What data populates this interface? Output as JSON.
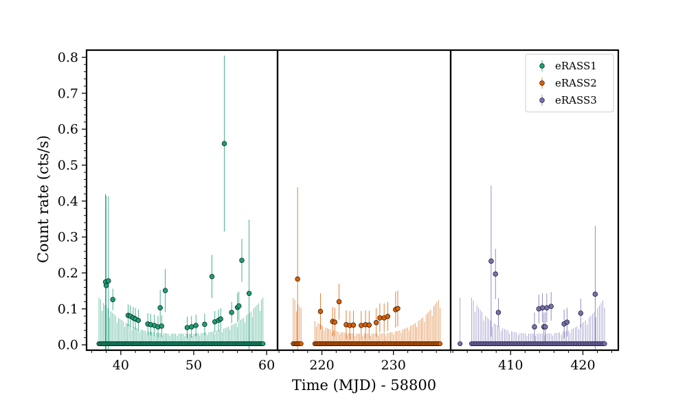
{
  "chart_data": {
    "type": "scatter",
    "xlabel": "Time (MJD) - 58800",
    "ylabel": "Count rate (cts/s)",
    "ylim": [
      -0.015,
      0.82
    ],
    "y_ticks": [
      0.0,
      0.1,
      0.2,
      0.3,
      0.4,
      0.5,
      0.6,
      0.7,
      0.8
    ],
    "y_tick_labels": [
      "0.0",
      "0.1",
      "0.2",
      "0.3",
      "0.4",
      "0.5",
      "0.6",
      "0.7",
      "0.8"
    ],
    "legend_position": "top-right",
    "panels": [
      {
        "xlim": [
          35.3,
          61.5
        ],
        "x_ticks": [
          40,
          50,
          60
        ],
        "x_tick_labels": [
          "40",
          "50",
          "60"
        ]
      },
      {
        "xlim": [
          213.8,
          238.0
        ],
        "x_ticks": [
          220,
          230
        ],
        "x_tick_labels": [
          "220",
          "230"
        ]
      },
      {
        "xlim": [
          401.7,
          424.9
        ],
        "x_ticks": [
          410,
          420
        ],
        "x_tick_labels": [
          "410",
          "420"
        ]
      }
    ],
    "series": [
      {
        "name": "eRASS1",
        "color": "#1b9e77",
        "panel": 0,
        "t_range": [
          37.0,
          59.5
        ],
        "n_base": 110,
        "points": [
          {
            "x": 37.9,
            "y": 0.175,
            "err": 0.245
          },
          {
            "x": 38.0,
            "y": 0.165,
            "err": 0.25
          },
          {
            "x": 38.3,
            "y": 0.178,
            "err": 0.235
          },
          {
            "x": 38.9,
            "y": 0.126,
            "err": 0.03
          },
          {
            "x": 41.0,
            "y": 0.082,
            "err": 0.03
          },
          {
            "x": 41.3,
            "y": 0.08,
            "err": 0.03
          },
          {
            "x": 41.7,
            "y": 0.075,
            "err": 0.03
          },
          {
            "x": 42.0,
            "y": 0.072,
            "err": 0.03
          },
          {
            "x": 42.4,
            "y": 0.068,
            "err": 0.03
          },
          {
            "x": 43.7,
            "y": 0.058,
            "err": 0.03
          },
          {
            "x": 44.1,
            "y": 0.056,
            "err": 0.03
          },
          {
            "x": 44.6,
            "y": 0.054,
            "err": 0.03
          },
          {
            "x": 45.1,
            "y": 0.05,
            "err": 0.03
          },
          {
            "x": 45.4,
            "y": 0.103,
            "err": 0.05
          },
          {
            "x": 45.6,
            "y": 0.052,
            "err": 0.03
          },
          {
            "x": 46.1,
            "y": 0.151,
            "err": 0.06
          },
          {
            "x": 49.1,
            "y": 0.048,
            "err": 0.03
          },
          {
            "x": 49.7,
            "y": 0.05,
            "err": 0.03
          },
          {
            "x": 50.3,
            "y": 0.054,
            "err": 0.03
          },
          {
            "x": 51.5,
            "y": 0.057,
            "err": 0.03
          },
          {
            "x": 52.5,
            "y": 0.19,
            "err": 0.06
          },
          {
            "x": 52.9,
            "y": 0.064,
            "err": 0.03
          },
          {
            "x": 53.4,
            "y": 0.068,
            "err": 0.03
          },
          {
            "x": 53.7,
            "y": 0.072,
            "err": 0.03
          },
          {
            "x": 54.2,
            "y": 0.56,
            "err": 0.245
          },
          {
            "x": 55.2,
            "y": 0.09,
            "err": 0.03
          },
          {
            "x": 56.0,
            "y": 0.104,
            "err": 0.04
          },
          {
            "x": 56.2,
            "y": 0.108,
            "err": 0.04
          },
          {
            "x": 56.6,
            "y": 0.235,
            "err": 0.06
          },
          {
            "x": 57.6,
            "y": 0.143,
            "err": 0.205
          }
        ]
      },
      {
        "name": "eRASS2",
        "color": "#d95f02",
        "panel": 1,
        "t_range": [
          216.0,
          236.5
        ],
        "n_base": 96,
        "gaps": [
          [
            217.1,
            218.9
          ]
        ],
        "points": [
          {
            "x": 216.6,
            "y": 0.183,
            "err": 0.255
          },
          {
            "x": 219.8,
            "y": 0.093,
            "err": 0.05
          },
          {
            "x": 221.5,
            "y": 0.065,
            "err": 0.04
          },
          {
            "x": 221.8,
            "y": 0.063,
            "err": 0.04
          },
          {
            "x": 222.4,
            "y": 0.12,
            "err": 0.05
          },
          {
            "x": 223.4,
            "y": 0.056,
            "err": 0.04
          },
          {
            "x": 223.9,
            "y": 0.054,
            "err": 0.04
          },
          {
            "x": 224.4,
            "y": 0.055,
            "err": 0.04
          },
          {
            "x": 225.5,
            "y": 0.054,
            "err": 0.04
          },
          {
            "x": 226.1,
            "y": 0.056,
            "err": 0.04
          },
          {
            "x": 226.6,
            "y": 0.055,
            "err": 0.04
          },
          {
            "x": 227.6,
            "y": 0.062,
            "err": 0.04
          },
          {
            "x": 228.1,
            "y": 0.075,
            "err": 0.04
          },
          {
            "x": 228.7,
            "y": 0.075,
            "err": 0.04
          },
          {
            "x": 229.2,
            "y": 0.079,
            "err": 0.04
          },
          {
            "x": 230.3,
            "y": 0.098,
            "err": 0.05
          },
          {
            "x": 230.6,
            "y": 0.101,
            "err": 0.05
          }
        ]
      },
      {
        "name": "eRASS3",
        "color": "#7570b3",
        "panel": 2,
        "t_range": [
          404.6,
          423.0
        ],
        "n_base": 78,
        "isolated": [
          403.0
        ],
        "points": [
          {
            "x": 407.3,
            "y": 0.233,
            "err": 0.21
          },
          {
            "x": 407.9,
            "y": 0.197,
            "err": 0.07
          },
          {
            "x": 408.3,
            "y": 0.09,
            "err": 0.04
          },
          {
            "x": 413.3,
            "y": 0.05,
            "err": 0.04
          },
          {
            "x": 413.9,
            "y": 0.1,
            "err": 0.04
          },
          {
            "x": 414.4,
            "y": 0.103,
            "err": 0.04
          },
          {
            "x": 414.6,
            "y": 0.05,
            "err": 0.04
          },
          {
            "x": 414.8,
            "y": 0.05,
            "err": 0.04
          },
          {
            "x": 415.0,
            "y": 0.103,
            "err": 0.04
          },
          {
            "x": 415.6,
            "y": 0.107,
            "err": 0.04
          },
          {
            "x": 417.4,
            "y": 0.058,
            "err": 0.04
          },
          {
            "x": 417.8,
            "y": 0.063,
            "err": 0.04
          },
          {
            "x": 419.7,
            "y": 0.088,
            "err": 0.04
          },
          {
            "x": 421.7,
            "y": 0.141,
            "err": 0.19
          }
        ]
      }
    ]
  }
}
